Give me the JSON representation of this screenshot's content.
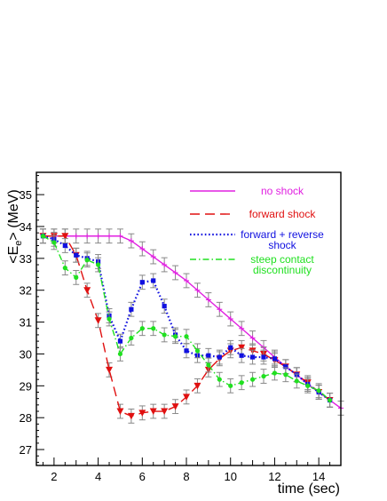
{
  "chart_data": {
    "type": "line",
    "title": "",
    "xlabel": "time (sec)",
    "ylabel_main": "<E",
    "ylabel_sub": "e",
    "ylabel_tail": "> (MeV)",
    "xlim": [
      1.2,
      15.0
    ],
    "ylim": [
      26.5,
      35.7
    ],
    "x_ticks": [
      2,
      4,
      6,
      8,
      10,
      12,
      14
    ],
    "y_ticks": [
      27,
      28,
      29,
      30,
      31,
      32,
      33,
      34,
      35
    ],
    "grid": false,
    "legend_position": "top-right",
    "series": [
      {
        "name": "no shock",
        "color": "#e020e0",
        "dash": "solid",
        "marker": "star",
        "x": [
          1.5,
          2.0,
          2.5,
          3.0,
          3.5,
          4.0,
          4.5,
          5.0,
          5.5,
          6.0,
          6.5,
          7.0,
          7.5,
          8.0,
          8.5,
          9.0,
          9.5,
          10.0,
          10.5,
          11.0,
          11.5,
          12.0,
          12.5,
          13.0,
          13.5,
          14.0,
          14.5,
          15.0
        ],
        "y": [
          33.7,
          33.7,
          33.7,
          33.7,
          33.7,
          33.7,
          33.7,
          33.7,
          33.55,
          33.3,
          33.05,
          32.8,
          32.55,
          32.3,
          32.0,
          31.7,
          31.4,
          31.1,
          30.8,
          30.5,
          30.2,
          29.9,
          29.6,
          29.35,
          29.05,
          28.8,
          28.55,
          28.3
        ],
        "err": 0.22
      },
      {
        "name": "forward shock",
        "color": "#e01010",
        "dash": "long-dash",
        "marker": "triangle-down",
        "x": [
          1.5,
          2.0,
          2.5,
          3.0,
          3.5,
          4.0,
          4.5,
          5.0,
          5.5,
          6.0,
          6.5,
          7.0,
          7.5,
          8.0,
          8.5,
          9.0,
          9.5,
          10.0,
          10.5,
          11.0,
          11.5,
          12.0,
          12.5,
          13.0,
          13.5,
          14.0,
          14.5
        ],
        "y": [
          33.7,
          33.7,
          33.7,
          33.1,
          32.0,
          31.05,
          29.5,
          28.2,
          28.05,
          28.15,
          28.2,
          28.2,
          28.35,
          28.65,
          29.0,
          29.5,
          29.85,
          30.1,
          30.2,
          30.1,
          30.0,
          29.8,
          29.6,
          29.35,
          29.1,
          28.8,
          28.55
        ],
        "err": 0.22
      },
      {
        "name": "forward + reverse shock",
        "color": "#1010e0",
        "dash": "dotted",
        "marker": "square",
        "x": [
          1.5,
          2.0,
          2.5,
          3.0,
          3.5,
          4.0,
          4.5,
          5.0,
          5.5,
          6.0,
          6.5,
          7.0,
          7.5,
          8.0,
          8.5,
          9.0,
          9.5,
          10.0,
          10.5,
          11.0,
          11.5,
          12.0,
          12.5,
          13.0,
          13.5,
          14.0,
          14.5
        ],
        "y": [
          33.7,
          33.6,
          33.4,
          33.1,
          33.0,
          32.9,
          31.2,
          30.4,
          31.4,
          32.25,
          32.3,
          31.5,
          30.6,
          30.1,
          29.95,
          29.95,
          29.9,
          30.2,
          29.95,
          29.9,
          29.9,
          29.85,
          29.6,
          29.35,
          29.05,
          28.8,
          28.55
        ],
        "err": 0.22
      },
      {
        "name": "steep contact discontinuity",
        "color": "#20e020",
        "dash": "dash-dot",
        "marker": "circle",
        "x": [
          1.5,
          2.0,
          2.5,
          3.0,
          3.5,
          4.0,
          4.5,
          5.0,
          5.5,
          6.0,
          6.5,
          7.0,
          7.5,
          8.0,
          8.5,
          9.0,
          9.5,
          10.0,
          10.5,
          11.0,
          11.5,
          12.0,
          12.5,
          13.0,
          13.5,
          14.0,
          14.5
        ],
        "y": [
          33.7,
          33.5,
          32.7,
          32.4,
          32.95,
          32.8,
          31.1,
          30.0,
          30.5,
          30.8,
          30.8,
          30.6,
          30.55,
          30.55,
          30.1,
          29.65,
          29.2,
          29.0,
          29.1,
          29.2,
          29.3,
          29.4,
          29.35,
          29.15,
          29.0,
          28.85,
          28.55
        ],
        "err": 0.22
      }
    ],
    "legend": [
      {
        "lines": [
          "no shock"
        ],
        "color": "#e020e0"
      },
      {
        "lines": [
          "forward shock"
        ],
        "color": "#e01010"
      },
      {
        "lines": [
          "forward + reverse",
          "shock"
        ],
        "color": "#1010e0"
      },
      {
        "lines": [
          "steep contact",
          "discontinuity"
        ],
        "color": "#20e020"
      }
    ]
  }
}
